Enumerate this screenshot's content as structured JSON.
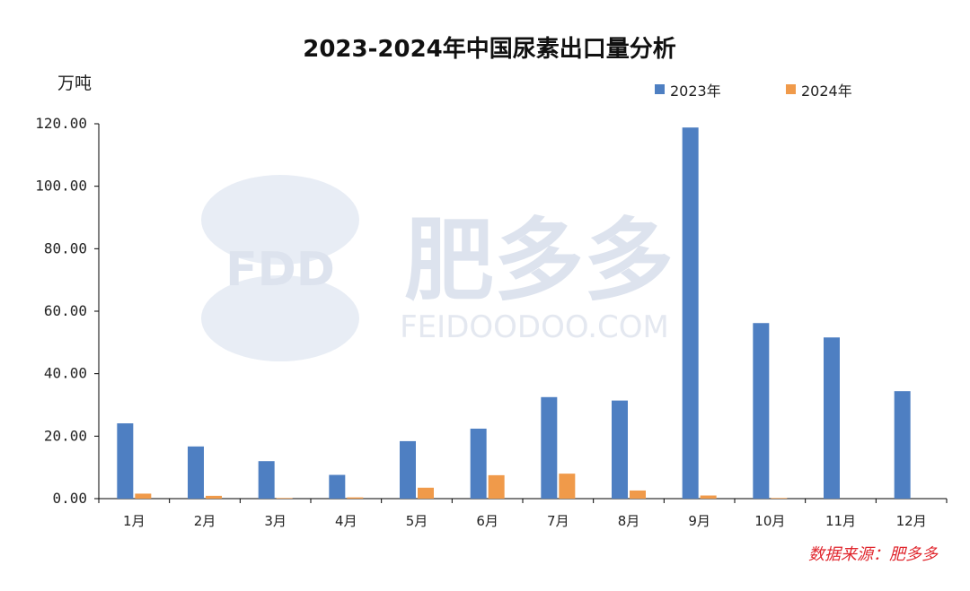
{
  "watermark": {
    "logo_text": "FDD",
    "brand_text": "肥多多",
    "site_text": "FEIDOODOO.COM"
  },
  "source_note": "数据来源：肥多多",
  "colors": {
    "series_2023": "#4e7fc2",
    "series_2024": "#f09a4a",
    "source_red": "#e0262d"
  },
  "chart_data": {
    "type": "bar",
    "title": "2023-2024年中国尿素出口量分析",
    "ylabel": "万吨",
    "xlabel": "",
    "ylim": [
      0,
      120
    ],
    "yticks": [
      "0.00",
      "20.00",
      "40.00",
      "60.00",
      "80.00",
      "100.00",
      "120.00"
    ],
    "categories": [
      "1月",
      "2月",
      "3月",
      "4月",
      "5月",
      "6月",
      "7月",
      "8月",
      "9月",
      "10月",
      "11月",
      "12月"
    ],
    "series": [
      {
        "name": "2023年",
        "color": "#4e7fc2",
        "values": [
          24.1,
          16.7,
          12.0,
          7.6,
          18.4,
          22.4,
          32.5,
          31.4,
          118.8,
          56.2,
          51.6,
          34.4
        ]
      },
      {
        "name": "2024年",
        "color": "#f09a4a",
        "values": [
          1.6,
          0.9,
          0.2,
          0.4,
          3.5,
          7.5,
          8.0,
          2.6,
          1.0,
          0.2,
          0,
          0
        ]
      }
    ],
    "legend_position": "top-right",
    "grid": false
  }
}
